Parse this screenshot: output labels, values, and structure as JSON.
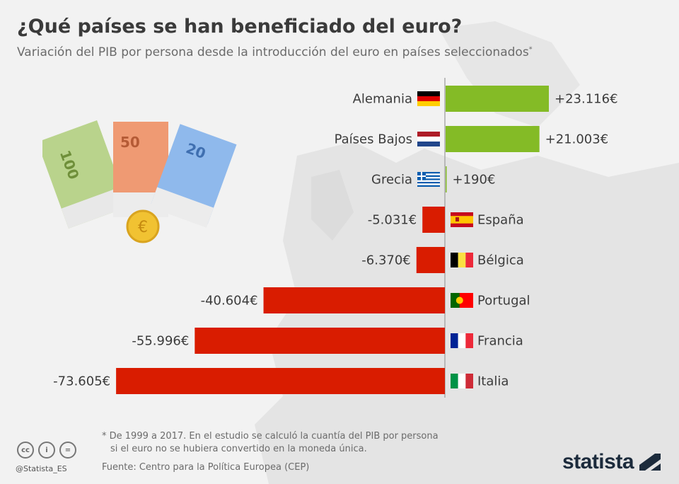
{
  "title": "¿Qué países se han beneficiado del euro?",
  "subtitle": "Variación del PIB por persona desde la introducción del euro en países seleccionados",
  "subtitle_mark": "*",
  "chart_data": {
    "type": "bar",
    "orientation": "horizontal",
    "unit": "€",
    "categories": [
      "Alemania",
      "Países Bajos",
      "Grecia",
      "España",
      "Bélgica",
      "Portugal",
      "Francia",
      "Italia"
    ],
    "values": [
      23116,
      21003,
      190,
      -5031,
      -6370,
      -40604,
      -55996,
      -73605
    ],
    "labels": [
      "+23.116€",
      "+21.003€",
      "+190€",
      "-5.031€",
      "-6.370€",
      "-40.604€",
      "-55.996€",
      "-73.605€"
    ],
    "colors": {
      "positive": "#84bb26",
      "negative": "#d91c00"
    }
  },
  "footnote_line1": "* De 1999 a 2017. En el estudio se calculó la cuantía del PIB por persona",
  "footnote_line2": "si el euro no se hubiera convertido en la moneda única.",
  "source": "Fuente: Centro para la Política Europea (CEP)",
  "handle": "@Statista_ES",
  "brand": "statista",
  "license_icons": [
    "cc-icon",
    "attribution-icon",
    "no-derivatives-icon"
  ],
  "banknotes": [
    "100",
    "50",
    "20"
  ]
}
